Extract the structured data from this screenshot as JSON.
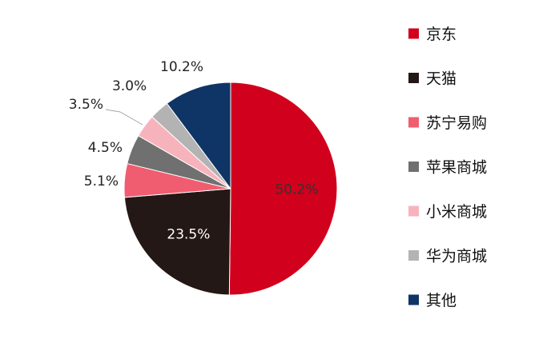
{
  "chart_data": {
    "type": "pie",
    "title": "",
    "categories": [
      "京东",
      "天猫",
      "苏宁易购",
      "苹果商城",
      "小米商城",
      "华为商城",
      "其他"
    ],
    "values": [
      50.2,
      23.5,
      5.1,
      4.5,
      3.5,
      3.0,
      10.2
    ],
    "value_labels": [
      "50.2%",
      "23.5%",
      "5.1%",
      "4.5%",
      "3.5%",
      "3.0%",
      "10.2%"
    ],
    "colors": [
      "#d1001c",
      "#231815",
      "#f05d70",
      "#707070",
      "#f7b3bc",
      "#b3b3b3",
      "#0e3565"
    ],
    "start_angle": "12 o'clock",
    "direction": "clockwise",
    "legend": {
      "position": "right",
      "items": [
        "京东",
        "天猫",
        "苏宁易购",
        "苹果商城",
        "小米商城",
        "华为商城",
        "其他"
      ]
    }
  }
}
